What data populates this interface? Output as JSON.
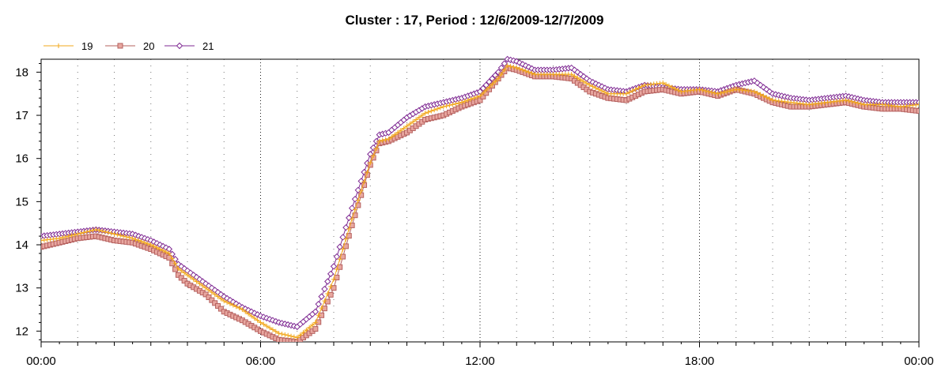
{
  "chart_data": {
    "type": "line",
    "title": "Cluster : 17, Period : 12/6/2009-12/7/2009",
    "xlabel": "",
    "ylabel": "",
    "xlim": [
      "00:00",
      "24:00"
    ],
    "ylim": [
      11.75,
      18.3
    ],
    "x_ticks": [
      "00:00",
      "06:00",
      "12:00",
      "18:00",
      "00:00"
    ],
    "y_ticks": [
      12,
      13,
      14,
      15,
      16,
      17,
      18
    ],
    "grid": "vertical dotted at major x ticks",
    "legend_position": "top-left",
    "x_hours": [
      0,
      0.5,
      1,
      1.5,
      2,
      2.5,
      3,
      3.5,
      3.75,
      4,
      4.5,
      5,
      5.5,
      6,
      6.5,
      7,
      7.5,
      8,
      8.5,
      9,
      9.25,
      9.5,
      10,
      10.5,
      11,
      11.5,
      12,
      12.5,
      12.75,
      13,
      13.5,
      14,
      14.5,
      15,
      15.5,
      16,
      16.5,
      17,
      17.5,
      18,
      18.5,
      19,
      19.5,
      20,
      20.5,
      21,
      21.5,
      22,
      22.5,
      23,
      23.5,
      24
    ],
    "series": [
      {
        "name": "19",
        "color": "#f2a81d",
        "marker": "plus",
        "values": [
          14.1,
          14.15,
          14.25,
          14.35,
          14.25,
          14.15,
          14.0,
          13.8,
          13.45,
          13.3,
          13.0,
          12.7,
          12.5,
          12.2,
          11.95,
          11.85,
          12.2,
          13.2,
          14.6,
          15.9,
          16.4,
          16.45,
          16.75,
          17.05,
          17.2,
          17.3,
          17.45,
          17.85,
          18.15,
          18.1,
          17.95,
          17.95,
          17.95,
          17.7,
          17.5,
          17.5,
          17.7,
          17.75,
          17.55,
          17.6,
          17.5,
          17.6,
          17.55,
          17.35,
          17.3,
          17.25,
          17.3,
          17.35,
          17.25,
          17.25,
          17.2,
          17.25
        ]
      },
      {
        "name": "20",
        "color": "#b5605e",
        "marker": "square",
        "values": [
          13.95,
          14.05,
          14.15,
          14.2,
          14.1,
          14.05,
          13.9,
          13.7,
          13.3,
          13.1,
          12.85,
          12.45,
          12.25,
          12.0,
          11.8,
          11.75,
          12.05,
          13.0,
          14.45,
          15.85,
          16.35,
          16.4,
          16.6,
          16.9,
          17.0,
          17.2,
          17.35,
          17.85,
          18.1,
          18.05,
          17.9,
          17.9,
          17.85,
          17.55,
          17.4,
          17.35,
          17.55,
          17.6,
          17.5,
          17.55,
          17.45,
          17.6,
          17.5,
          17.3,
          17.2,
          17.2,
          17.25,
          17.3,
          17.2,
          17.15,
          17.15,
          17.1
        ]
      },
      {
        "name": "21",
        "color": "#7f2a93",
        "marker": "diamond",
        "values": [
          14.2,
          14.25,
          14.3,
          14.35,
          14.3,
          14.25,
          14.1,
          13.9,
          13.55,
          13.4,
          13.1,
          12.8,
          12.55,
          12.35,
          12.2,
          12.1,
          12.45,
          13.5,
          14.85,
          16.1,
          16.55,
          16.6,
          16.95,
          17.2,
          17.3,
          17.4,
          17.55,
          18.0,
          18.3,
          18.25,
          18.05,
          18.05,
          18.1,
          17.8,
          17.6,
          17.55,
          17.7,
          17.65,
          17.6,
          17.6,
          17.55,
          17.7,
          17.8,
          17.5,
          17.4,
          17.35,
          17.4,
          17.45,
          17.35,
          17.3,
          17.3,
          17.3
        ]
      }
    ]
  }
}
